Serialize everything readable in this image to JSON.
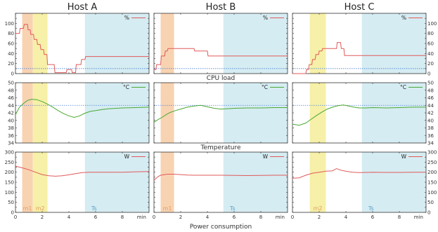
{
  "chart_data": {
    "type": "line",
    "hosts": [
      "Host A",
      "Host B",
      "Host C"
    ],
    "row_titles": [
      "",
      "CPU load",
      "Temperature"
    ],
    "xlabel": "Power consumption",
    "x_unit": "min",
    "xlim": [
      0,
      10
    ],
    "xticks": [
      0,
      2,
      4,
      6,
      8
    ],
    "rows": [
      {
        "legend": "%",
        "color": "#e05a5a",
        "ylim": [
          0,
          120
        ],
        "yticks": [
          0,
          10,
          20,
          30,
          40,
          50,
          60,
          70,
          80,
          90,
          100,
          110,
          120
        ],
        "ytick_labels": [
          "0",
          "",
          "20",
          "",
          "40",
          "",
          "60",
          "",
          "80",
          "",
          "100",
          "",
          ""
        ],
        "hline": 10
      },
      {
        "legend": "°C",
        "color": "#4aa832",
        "ylim": [
          34,
          50
        ],
        "yticks": [
          34,
          36,
          38,
          40,
          42,
          44,
          46,
          48,
          50
        ],
        "ytick_labels": [
          "34",
          "36",
          "38",
          "40",
          "42",
          "44",
          "46",
          "48",
          "50"
        ],
        "hline": 44
      },
      {
        "legend": "W",
        "color": "#e05a5a",
        "ylim": [
          0,
          300
        ],
        "yticks": [
          0,
          25,
          50,
          75,
          100,
          125,
          150,
          175,
          200,
          225,
          250,
          275,
          300
        ],
        "ytick_labels": [
          "0",
          "",
          "50",
          "",
          "100",
          "",
          "150",
          "",
          "200",
          "",
          "250",
          "",
          "300"
        ],
        "hline": null
      }
    ],
    "regions": {
      "Host A": [
        {
          "label": "m1",
          "start": 0.5,
          "end": 1.3,
          "color": "#f8d3b2"
        },
        {
          "label": "m2",
          "start": 1.3,
          "end": 2.4,
          "color": "#f6f0a8"
        },
        {
          "label": "Ts",
          "start": 5.2,
          "end": 10,
          "color": "#d5ecf2"
        }
      ],
      "Host B": [
        {
          "label": "m1",
          "start": 0.5,
          "end": 1.5,
          "color": "#f8d3b2"
        },
        {
          "label": "Ts",
          "start": 5.2,
          "end": 10,
          "color": "#d5ecf2"
        }
      ],
      "Host C": [
        {
          "label": "m2",
          "start": 1.3,
          "end": 2.5,
          "color": "#f6f0a8"
        },
        {
          "label": "Ts",
          "start": 5.2,
          "end": 10,
          "color": "#d5ecf2"
        }
      ]
    },
    "series": {
      "Host A": {
        "cpu": {
          "x": [
            0,
            0.3,
            0.35,
            0.6,
            0.65,
            0.9,
            0.95,
            1.1,
            1.15,
            1.35,
            1.4,
            1.6,
            1.65,
            1.85,
            1.9,
            2.1,
            2.15,
            2.35,
            2.4,
            2.9,
            2.95,
            3.8,
            3.85,
            4.2,
            4.25,
            4.5,
            4.55,
            4.9,
            4.95,
            5.2,
            5.25,
            10
          ],
          "y": [
            80,
            80,
            90,
            90,
            98,
            98,
            87,
            87,
            78,
            78,
            68,
            68,
            58,
            58,
            48,
            48,
            38,
            38,
            18,
            18,
            2,
            2,
            8,
            8,
            2,
            2,
            18,
            18,
            28,
            28,
            34,
            34
          ]
        },
        "temp": {
          "x": [
            0,
            0.3,
            0.6,
            0.9,
            1.2,
            1.6,
            2.0,
            2.4,
            2.8,
            3.2,
            3.6,
            4.0,
            4.4,
            4.8,
            5.2,
            5.6,
            6.0,
            6.5,
            7.0,
            8.0,
            9.0,
            10
          ],
          "y": [
            41.5,
            43.5,
            44.5,
            45.3,
            45.6,
            45.5,
            45.0,
            44.3,
            43.5,
            42.6,
            41.8,
            41.2,
            40.8,
            41.2,
            41.9,
            42.4,
            42.6,
            42.9,
            43.1,
            43.3,
            43.4,
            43.5
          ]
        },
        "power": {
          "x": [
            0,
            0.5,
            1.0,
            1.5,
            2.0,
            2.5,
            3.0,
            3.5,
            4.0,
            4.5,
            5.0,
            5.5,
            6.0,
            7.0,
            8.0,
            9.0,
            10
          ],
          "y": [
            230,
            222,
            212,
            200,
            188,
            182,
            180,
            182,
            187,
            193,
            198,
            200,
            200,
            200,
            200,
            202,
            203
          ]
        }
      },
      "Host B": {
        "cpu": {
          "x": [
            0,
            0.15,
            0.2,
            0.5,
            0.55,
            0.8,
            0.85,
            1.0,
            1.05,
            3.0,
            3.05,
            4.0,
            4.05,
            10
          ],
          "y": [
            8,
            8,
            18,
            18,
            35,
            35,
            45,
            45,
            50,
            50,
            45,
            45,
            35,
            35
          ]
        },
        "temp": {
          "x": [
            0,
            0.3,
            0.6,
            0.9,
            1.2,
            1.6,
            2.0,
            2.5,
            3.0,
            3.5,
            4.0,
            4.5,
            5.0,
            5.5,
            6.0,
            7.0,
            8.0,
            9.0,
            10
          ],
          "y": [
            39.5,
            40.2,
            40.8,
            41.5,
            42.1,
            42.6,
            43.0,
            43.5,
            43.8,
            44.0,
            43.6,
            43.2,
            43.0,
            43.1,
            43.2,
            43.3,
            43.3,
            43.4,
            43.4
          ]
        },
        "power": {
          "x": [
            0,
            0.3,
            0.5,
            1.0,
            1.5,
            2.0,
            2.5,
            3.0,
            4.0,
            5.0,
            6.0,
            7.0,
            8.0,
            9.0,
            10
          ],
          "y": [
            160,
            178,
            185,
            190,
            190,
            188,
            186,
            185,
            185,
            185,
            184,
            183,
            184,
            185,
            185
          ]
        }
      },
      "Host C": {
        "cpu": {
          "x": [
            0,
            1.0,
            1.05,
            1.2,
            1.25,
            1.45,
            1.5,
            1.7,
            1.75,
            1.95,
            2.0,
            2.2,
            2.25,
            3.3,
            3.35,
            3.6,
            3.65,
            3.85,
            3.9,
            10
          ],
          "y": [
            0,
            0,
            8,
            8,
            18,
            18,
            28,
            28,
            38,
            38,
            45,
            45,
            50,
            50,
            62,
            62,
            50,
            50,
            36,
            36
          ]
        },
        "temp": {
          "x": [
            0,
            0.5,
            1.0,
            1.4,
            1.8,
            2.2,
            2.6,
            3.0,
            3.4,
            3.8,
            4.2,
            4.6,
            5.0,
            5.5,
            6.0,
            7.0,
            8.0,
            9.0,
            10
          ],
          "y": [
            39.0,
            38.7,
            39.3,
            40.3,
            41.3,
            42.2,
            43.0,
            43.5,
            43.9,
            44.1,
            43.8,
            43.5,
            43.3,
            43.3,
            43.4,
            43.3,
            43.4,
            43.5,
            43.5
          ]
        },
        "power": {
          "x": [
            0,
            0.5,
            1.0,
            1.5,
            2.0,
            2.5,
            3.0,
            3.3,
            3.6,
            4.0,
            4.5,
            5.0,
            6.0,
            7.0,
            8.0,
            9.0,
            10
          ],
          "y": [
            170,
            172,
            185,
            195,
            200,
            205,
            207,
            218,
            210,
            205,
            200,
            198,
            200,
            199,
            199,
            200,
            200
          ]
        }
      }
    }
  }
}
